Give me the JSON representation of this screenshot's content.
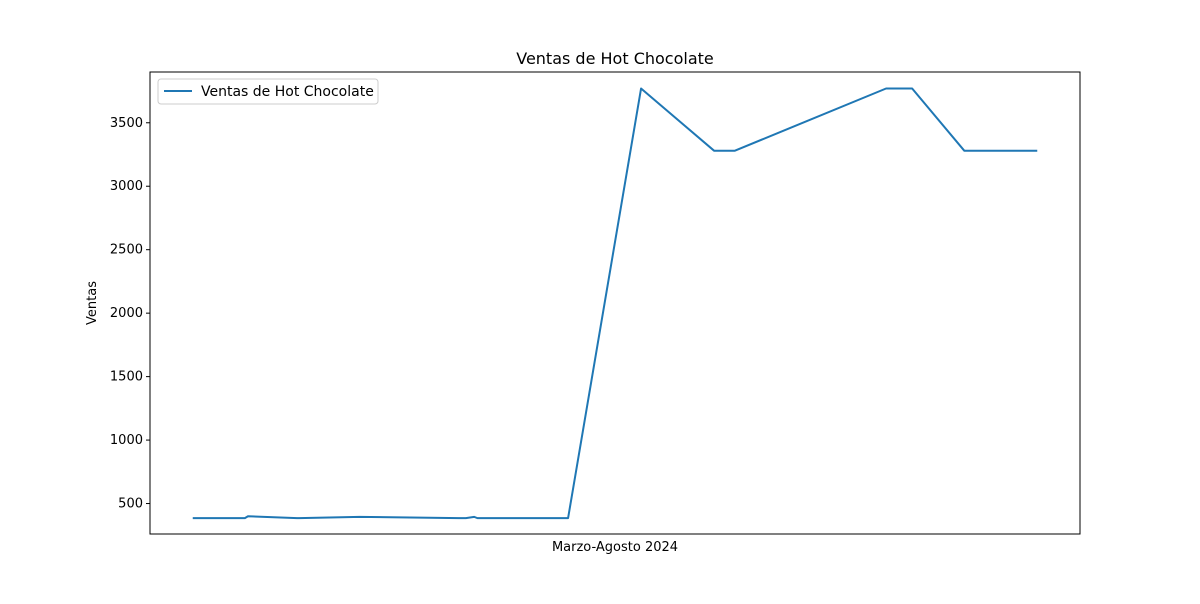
{
  "chart_data": {
    "type": "line",
    "title": "Ventas de Hot Chocolate",
    "xlabel": "Marzo-Agosto 2024",
    "ylabel": "Ventas",
    "ylim": [
      260,
      3900
    ],
    "yticks": [
      500,
      1000,
      1500,
      2000,
      2500,
      3000,
      3500
    ],
    "ytick_labels": [
      "500",
      "1000",
      "1500",
      "2000",
      "2500",
      "3000",
      "3500"
    ],
    "xticks": [],
    "grid": false,
    "legend_position": "upper left",
    "series": [
      {
        "name": "Ventas de Hot Chocolate",
        "color": "#1f77b4",
        "x": [
          0,
          4,
          5,
          5.3,
          10,
          10.2,
          16,
          25.5,
          26.2,
          27,
          27.3,
          29,
          32,
          36,
          43,
          50,
          52,
          66.5,
          67.3,
          69,
          74,
          81
        ],
        "y": [
          385,
          385,
          385,
          400,
          385,
          385,
          395,
          385,
          385,
          395,
          385,
          385,
          385,
          385,
          3770,
          3280,
          3280,
          3770,
          3770,
          3770,
          3280,
          3280
        ]
      }
    ]
  }
}
